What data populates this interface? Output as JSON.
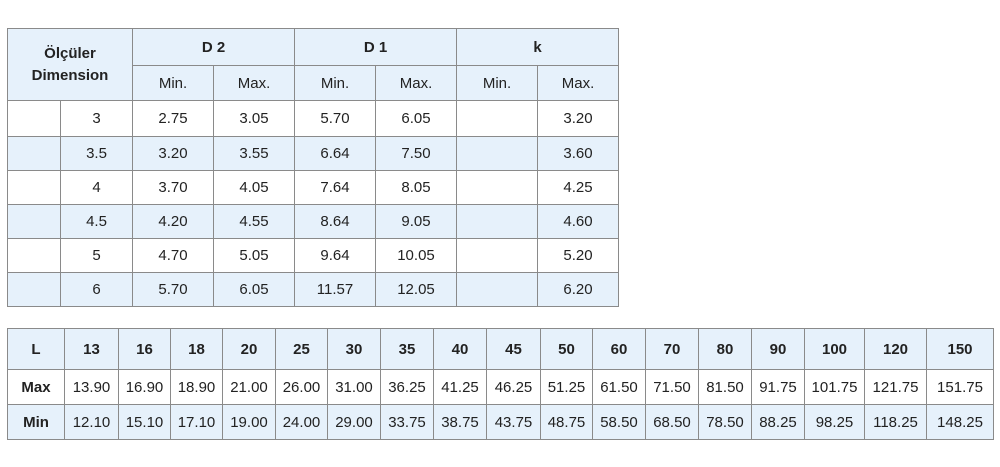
{
  "table1": {
    "dimension_label": [
      "Ölçüler",
      "Dimension"
    ],
    "groups": [
      "D 2",
      "D 1",
      "k"
    ],
    "subheaders": [
      "Min.",
      "Max.",
      "Min.",
      "Max.",
      "Min.",
      "Max."
    ],
    "rows": [
      {
        "size": "3",
        "d2": [
          "2.75",
          "3.05"
        ],
        "d1": [
          "5.70",
          "6.05"
        ],
        "k_max": "3.20"
      },
      {
        "size": "3.5",
        "d2": [
          "3.20",
          "3.55"
        ],
        "d1": [
          "6.64",
          "7.50"
        ],
        "k_max": "3.60"
      },
      {
        "size": "4",
        "d2": [
          "3.70",
          "4.05"
        ],
        "d1": [
          "7.64",
          "8.05"
        ],
        "k_max": "4.25"
      },
      {
        "size": "4.5",
        "d2": [
          "4.20",
          "4.55"
        ],
        "d1": [
          "8.64",
          "9.05"
        ],
        "k_max": "4.60"
      },
      {
        "size": "5",
        "d2": [
          "4.70",
          "5.05"
        ],
        "d1": [
          "9.64",
          "10.05"
        ],
        "k_max": "5.20"
      },
      {
        "size": "6",
        "d2": [
          "5.70",
          "6.05"
        ],
        "d1": [
          "11.57",
          "12.05"
        ],
        "k_max": "6.20"
      }
    ]
  },
  "table2": {
    "header_label": "L",
    "lengths": [
      "13",
      "16",
      "18",
      "20",
      "25",
      "30",
      "35",
      "40",
      "45",
      "50",
      "60",
      "70",
      "80",
      "90",
      "100",
      "120",
      "150"
    ],
    "rows": [
      {
        "label": "Max",
        "values": [
          "13.90",
          "16.90",
          "18.90",
          "21.00",
          "26.00",
          "31.00",
          "36.25",
          "41.25",
          "46.25",
          "51.25",
          "61.50",
          "71.50",
          "81.50",
          "91.75",
          "101.75",
          "121.75",
          "151.75"
        ]
      },
      {
        "label": "Min",
        "values": [
          "12.10",
          "15.10",
          "17.10",
          "19.00",
          "24.00",
          "29.00",
          "33.75",
          "38.75",
          "43.75",
          "48.75",
          "58.50",
          "68.50",
          "78.50",
          "88.25",
          "98.25",
          "118.25",
          "148.25"
        ]
      }
    ]
  }
}
